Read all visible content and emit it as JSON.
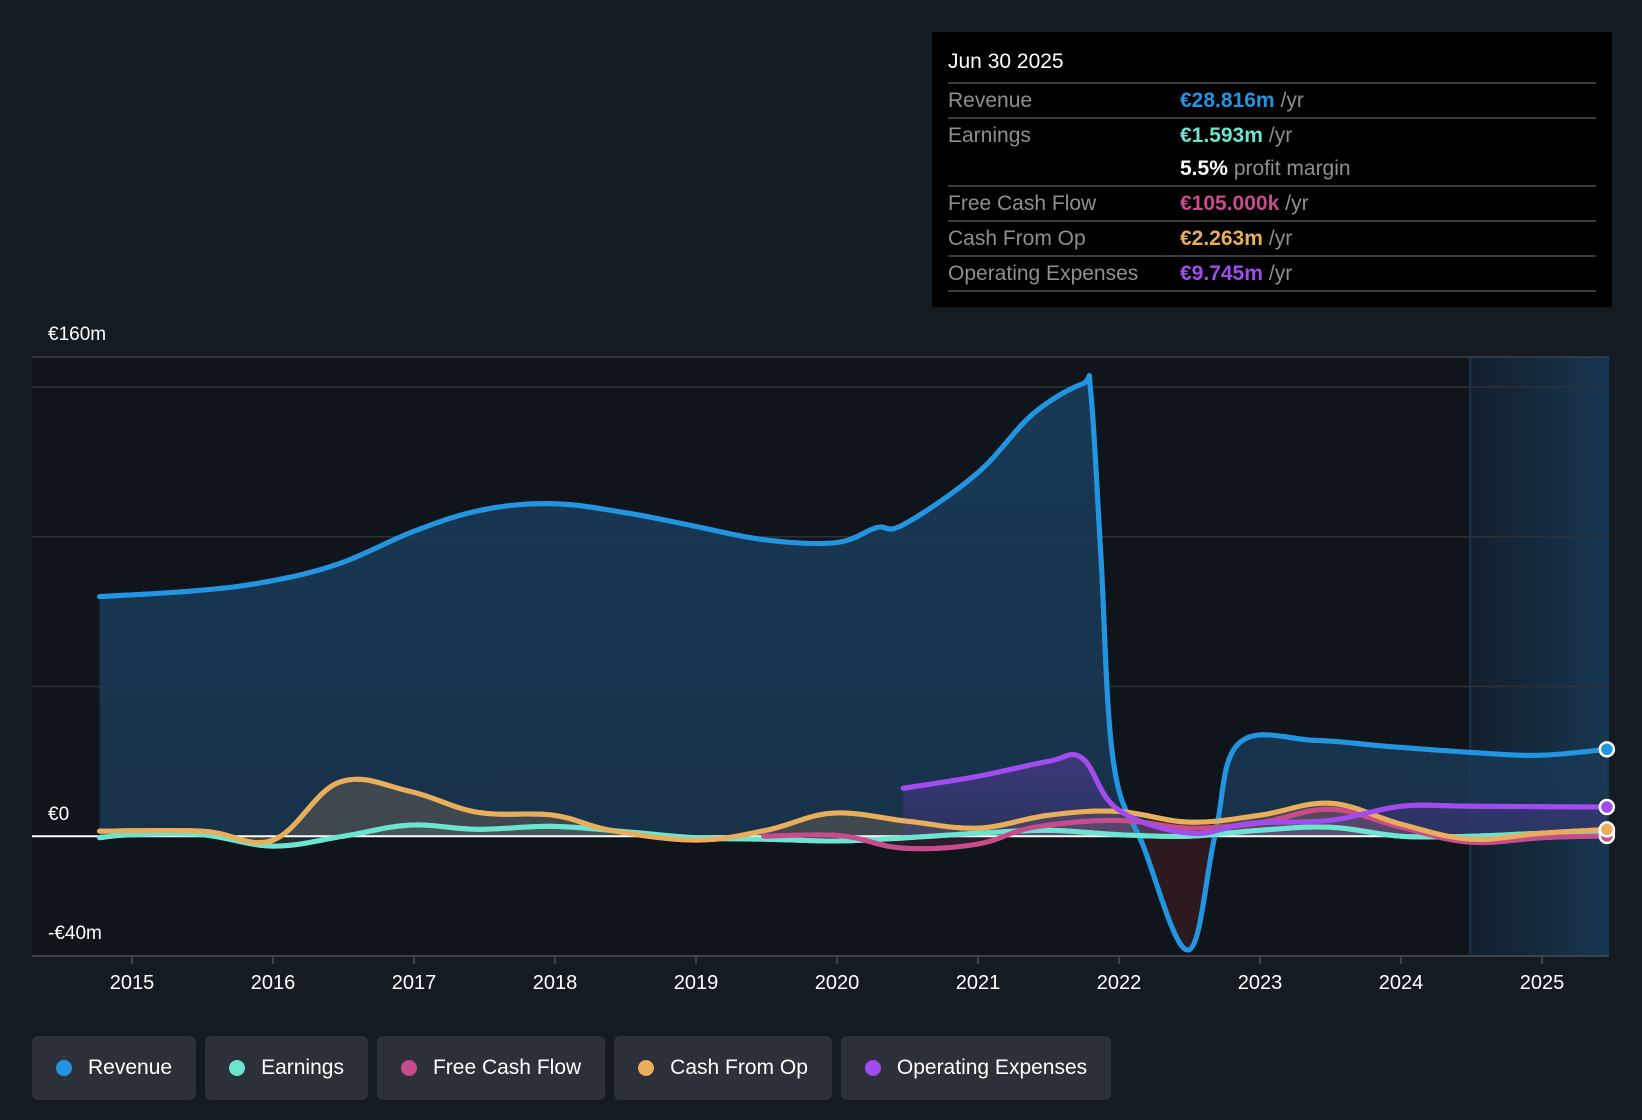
{
  "tooltip": {
    "date": "Jun 30 2025",
    "rows": [
      {
        "label": "Revenue",
        "value": "€28.816m",
        "unit": "/yr",
        "color": "#2394df"
      },
      {
        "label": "Earnings",
        "value": "€1.593m",
        "unit": "/yr",
        "color": "#6ce4cf"
      },
      {
        "label": "",
        "value": "5.5%",
        "unit": "profit margin",
        "color": "#ffffff"
      },
      {
        "label": "Free Cash Flow",
        "value": "€105.000k",
        "unit": "/yr",
        "color": "#c84b8c"
      },
      {
        "label": "Cash From Op",
        "value": "€2.263m",
        "unit": "/yr",
        "color": "#e8ae5c"
      },
      {
        "label": "Operating Expenses",
        "value": "€9.745m",
        "unit": "/yr",
        "color": "#a24cef"
      }
    ]
  },
  "legend": [
    {
      "label": "Revenue",
      "color": "#2394df"
    },
    {
      "label": "Earnings",
      "color": "#6ce4cf"
    },
    {
      "label": "Free Cash Flow",
      "color": "#c84b8c"
    },
    {
      "label": "Cash From Op",
      "color": "#e8ae5c"
    },
    {
      "label": "Operating Expenses",
      "color": "#a24cef"
    }
  ],
  "chart_data": {
    "type": "area",
    "title": "",
    "xlabel": "",
    "ylabel": "",
    "y_tick_labels": [
      {
        "value": 160,
        "label": "€160m"
      },
      {
        "value": 0,
        "label": "€0"
      },
      {
        "value": -40,
        "label": "-€40m"
      }
    ],
    "ylim": [
      -40,
      160
    ],
    "gridlines": [
      150,
      100,
      50
    ],
    "x_ticks": [
      2015,
      2016,
      2017,
      2018,
      2019,
      2020,
      2021,
      2022,
      2023,
      2024,
      2025
    ],
    "xlim": [
      2014.29,
      2025.47
    ],
    "forecast_start": 2024.49,
    "units": "€m",
    "series": [
      {
        "name": "Revenue",
        "color": "#2394df",
        "points": [
          [
            2014.77,
            80
          ],
          [
            2015.46,
            82
          ],
          [
            2015.96,
            85
          ],
          [
            2016.47,
            91
          ],
          [
            2017.01,
            102
          ],
          [
            2017.49,
            109
          ],
          [
            2017.99,
            111
          ],
          [
            2018.5,
            108
          ],
          [
            2018.94,
            104
          ],
          [
            2019.48,
            99
          ],
          [
            2019.99,
            98
          ],
          [
            2020.28,
            103
          ],
          [
            2020.47,
            104
          ],
          [
            2020.99,
            121
          ],
          [
            2021.39,
            141
          ],
          [
            2021.74,
            151
          ],
          [
            2021.8,
            148
          ],
          [
            2021.87,
            95
          ],
          [
            2021.96,
            25
          ],
          [
            2022.17,
            -3
          ],
          [
            2022.49,
            -38
          ],
          [
            2022.68,
            0
          ],
          [
            2022.85,
            31
          ],
          [
            2023.39,
            32
          ],
          [
            2023.9,
            30
          ],
          [
            2024.49,
            28
          ],
          [
            2024.97,
            27
          ],
          [
            2025.46,
            29
          ]
        ]
      },
      {
        "name": "Earnings",
        "color": "#6ce4cf",
        "points": [
          [
            2014.77,
            -0.5
          ],
          [
            2015.0,
            0.5
          ],
          [
            2015.5,
            0.5
          ],
          [
            2016.0,
            -3.3
          ],
          [
            2016.5,
            0
          ],
          [
            2016.97,
            3.7
          ],
          [
            2017.45,
            2.3
          ],
          [
            2017.99,
            3.3
          ],
          [
            2018.5,
            1.5
          ],
          [
            2019.0,
            -0.5
          ],
          [
            2019.5,
            -1
          ],
          [
            2020.0,
            -1.6
          ],
          [
            2020.5,
            -0.5
          ],
          [
            2021.0,
            1
          ],
          [
            2021.5,
            2
          ],
          [
            2022.0,
            0.5
          ],
          [
            2022.5,
            0
          ],
          [
            2023.0,
            2
          ],
          [
            2023.5,
            3
          ],
          [
            2024.0,
            0
          ],
          [
            2024.5,
            0
          ],
          [
            2025.0,
            1
          ],
          [
            2025.46,
            1.593
          ]
        ]
      },
      {
        "name": "Free Cash Flow",
        "color": "#c84b8c",
        "points": [
          [
            2019.48,
            0
          ],
          [
            2020.02,
            0.2
          ],
          [
            2020.47,
            -4
          ],
          [
            2020.99,
            -2.7
          ],
          [
            2021.4,
            3
          ],
          [
            2021.99,
            5.3
          ],
          [
            2022.5,
            2.7
          ],
          [
            2023.0,
            4.5
          ],
          [
            2023.5,
            9
          ],
          [
            2024.0,
            3
          ],
          [
            2024.49,
            -2
          ],
          [
            2025.0,
            -0.5
          ],
          [
            2025.46,
            0.105
          ]
        ]
      },
      {
        "name": "Cash From Op",
        "color": "#e8ae5c",
        "points": [
          [
            2014.77,
            1.7
          ],
          [
            2015.5,
            1.7
          ],
          [
            2016.0,
            -1.3
          ],
          [
            2016.47,
            18
          ],
          [
            2016.97,
            15
          ],
          [
            2017.45,
            8
          ],
          [
            2017.99,
            7
          ],
          [
            2018.39,
            2
          ],
          [
            2019.0,
            -1.3
          ],
          [
            2019.5,
            2
          ],
          [
            2019.97,
            7.7
          ],
          [
            2020.5,
            5
          ],
          [
            2021.0,
            2.7
          ],
          [
            2021.5,
            7
          ],
          [
            2021.99,
            8.3
          ],
          [
            2022.5,
            4.7
          ],
          [
            2023.0,
            7
          ],
          [
            2023.5,
            11
          ],
          [
            2024.0,
            4
          ],
          [
            2024.49,
            -1
          ],
          [
            2025.0,
            1
          ],
          [
            2025.46,
            2.263
          ]
        ]
      },
      {
        "name": "Operating Expenses",
        "color": "#a24cef",
        "points": [
          [
            2020.47,
            16
          ],
          [
            2021.0,
            20
          ],
          [
            2021.5,
            25
          ],
          [
            2021.74,
            26
          ],
          [
            2021.99,
            9
          ],
          [
            2022.5,
            1
          ],
          [
            2022.93,
            4.3
          ],
          [
            2023.5,
            5.3
          ],
          [
            2024.0,
            10
          ],
          [
            2024.5,
            10
          ],
          [
            2025.46,
            9.745
          ]
        ]
      }
    ]
  }
}
